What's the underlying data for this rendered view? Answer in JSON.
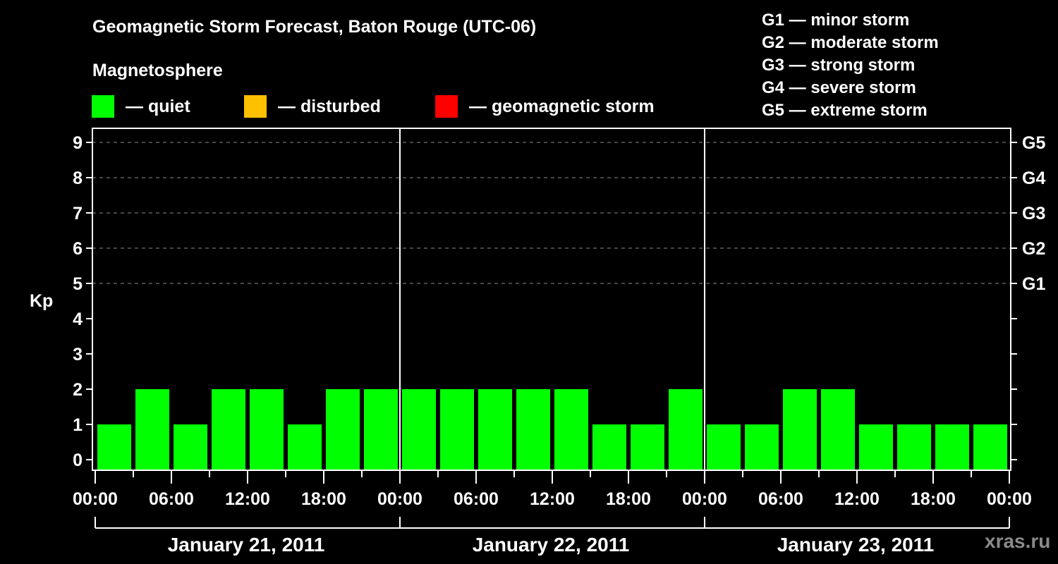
{
  "header": {
    "title": "Geomagnetic Storm Forecast, Baton Rouge (UTC-06)",
    "subtitle": "Magnetosphere"
  },
  "legend": [
    {
      "label": "— quiet",
      "color": "#00FF00"
    },
    {
      "label": "— disturbed",
      "color": "#FFC000"
    },
    {
      "label": "— geomagnetic storm",
      "color": "#FF0000"
    }
  ],
  "g_scale": [
    {
      "label": "G1 — minor storm"
    },
    {
      "label": "G2 — moderate storm"
    },
    {
      "label": "G3 — strong storm"
    },
    {
      "label": "G4 — severe storm"
    },
    {
      "label": "G5 — extreme storm"
    }
  ],
  "watermark": "xras.ru",
  "chart_data": {
    "type": "bar",
    "title": "Geomagnetic Storm Forecast, Baton Rouge (UTC-06)",
    "ylabel": "Kp",
    "xlabel": "",
    "ylim": [
      0,
      9
    ],
    "yticks": [
      0,
      1,
      2,
      3,
      4,
      5,
      6,
      7,
      8,
      9
    ],
    "right_axis_labels": [
      {
        "kp": 5,
        "label": "G1"
      },
      {
        "kp": 6,
        "label": "G2"
      },
      {
        "kp": 7,
        "label": "G3"
      },
      {
        "kp": 8,
        "label": "G4"
      },
      {
        "kp": 9,
        "label": "G5"
      }
    ],
    "grid": "dashed horizontal at Kp 5-9",
    "xtick_labels": [
      "00:00",
      "06:00",
      "12:00",
      "18:00",
      "00:00",
      "06:00",
      "12:00",
      "18:00",
      "00:00",
      "06:00",
      "12:00",
      "18:00",
      "00:00"
    ],
    "days": [
      {
        "label": "January 21, 2011",
        "kp": [
          1,
          2,
          1,
          2,
          2,
          1,
          2,
          2
        ]
      },
      {
        "label": "January 22, 2011",
        "kp": [
          2,
          2,
          2,
          2,
          2,
          1,
          1,
          2
        ]
      },
      {
        "label": "January 23, 2011",
        "kp": [
          1,
          1,
          2,
          2,
          1,
          1,
          1,
          1
        ]
      }
    ],
    "categories": [
      "00:00",
      "03:00",
      "06:00",
      "09:00",
      "12:00",
      "15:00",
      "18:00",
      "21:00",
      "00:00",
      "03:00",
      "06:00",
      "09:00",
      "12:00",
      "15:00",
      "18:00",
      "21:00",
      "00:00",
      "03:00",
      "06:00",
      "09:00",
      "12:00",
      "15:00",
      "18:00",
      "21:00"
    ],
    "values": [
      1,
      2,
      1,
      2,
      2,
      1,
      2,
      2,
      2,
      2,
      2,
      2,
      2,
      1,
      1,
      2,
      1,
      1,
      2,
      2,
      1,
      1,
      1,
      1
    ],
    "bar_color_quiet": "#00FF00",
    "bar_color_disturbed": "#FFC000",
    "bar_color_storm": "#FF0000"
  }
}
